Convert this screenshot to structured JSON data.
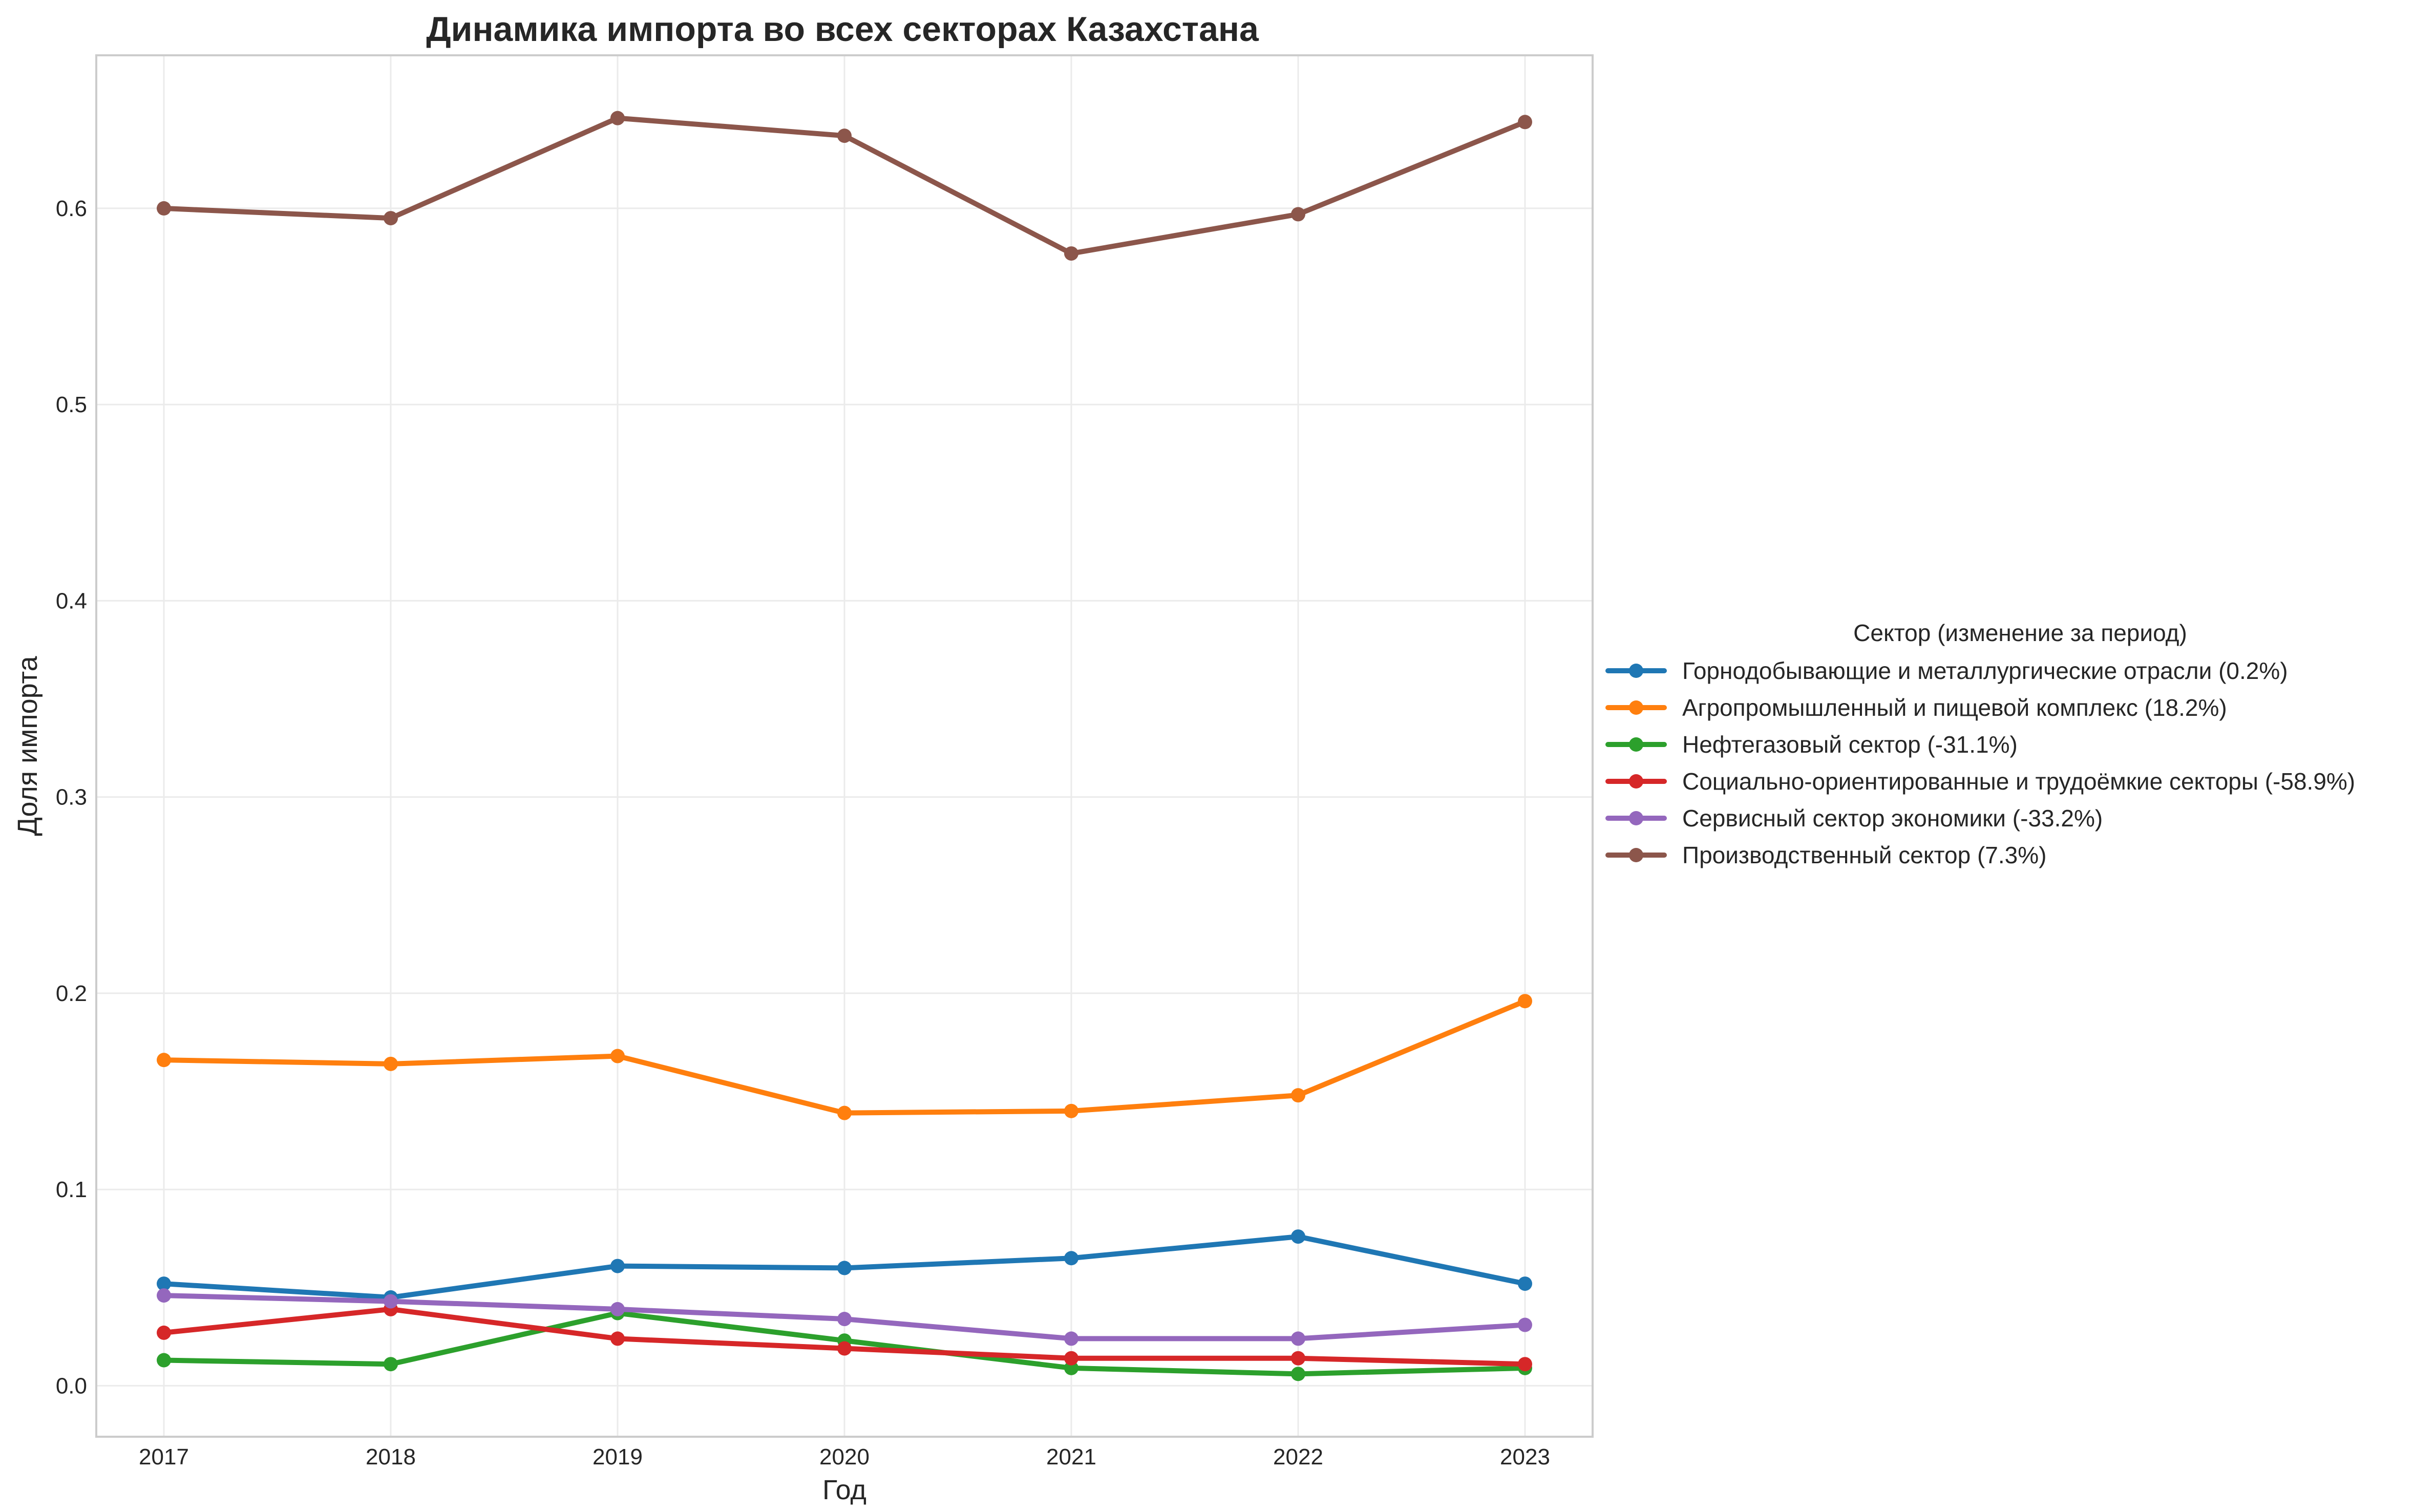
{
  "chart_data": {
    "type": "line",
    "title": "Динамика импорта во всех секторах Казахстана",
    "xlabel": "Год",
    "ylabel": "Доля импорта",
    "x": [
      "2017",
      "2018",
      "2019",
      "2020",
      "2021",
      "2022",
      "2023"
    ],
    "ylim": [
      -0.026,
      0.678
    ],
    "yticks": [
      "0.0",
      "0.1",
      "0.2",
      "0.3",
      "0.4",
      "0.5",
      "0.6"
    ],
    "grid": true,
    "legend": {
      "title": "Сектор (изменение за период)",
      "placement": "right"
    },
    "series": [
      {
        "name": "Горнодобывающие и металлургические отрасли (0.2%)",
        "color": "#1f77b4",
        "values": [
          0.052,
          0.045,
          0.061,
          0.06,
          0.065,
          0.076,
          0.052
        ]
      },
      {
        "name": "Агропромышленный и пищевой комплекс (18.2%)",
        "color": "#ff7f0e",
        "values": [
          0.166,
          0.164,
          0.168,
          0.139,
          0.14,
          0.148,
          0.196
        ]
      },
      {
        "name": "Нефтегазовый сектор (-31.1%)",
        "color": "#2ca02c",
        "values": [
          0.013,
          0.011,
          0.037,
          0.023,
          0.009,
          0.006,
          0.009
        ]
      },
      {
        "name": "Социально-ориентированные и трудоёмкие секторы (-58.9%)",
        "color": "#d62728",
        "values": [
          0.027,
          0.039,
          0.024,
          0.019,
          0.014,
          0.014,
          0.011
        ]
      },
      {
        "name": "Сервисный сектор экономики (-33.2%)",
        "color": "#9467bd",
        "values": [
          0.046,
          0.043,
          0.039,
          0.034,
          0.024,
          0.024,
          0.031
        ]
      },
      {
        "name": "Производственный сектор (7.3%)",
        "color": "#8c564b",
        "values": [
          0.6,
          0.595,
          0.646,
          0.637,
          0.577,
          0.597,
          0.644
        ]
      }
    ]
  }
}
